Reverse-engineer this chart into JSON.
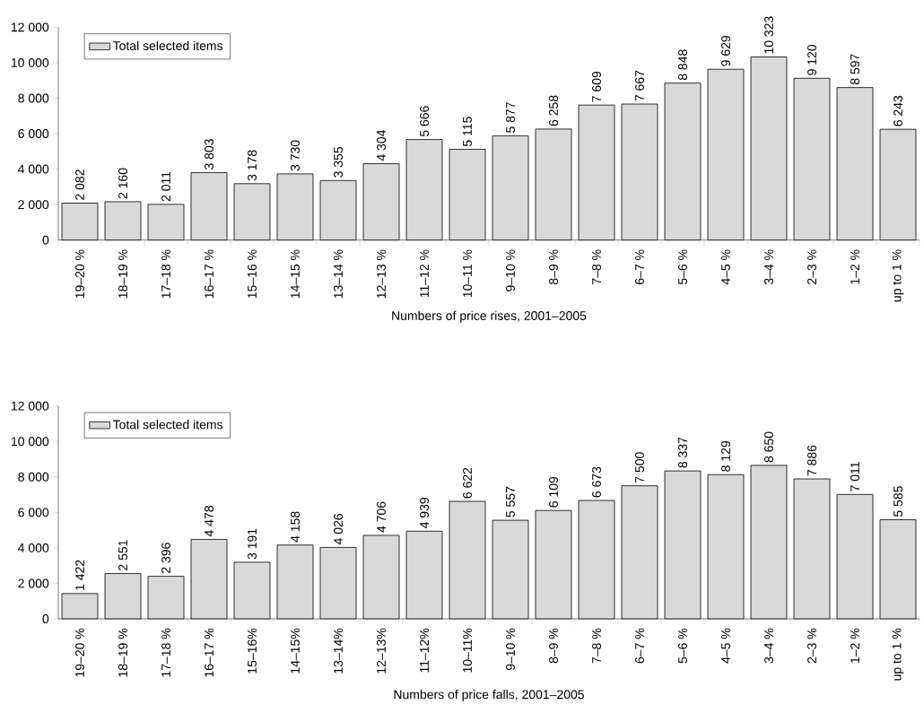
{
  "chart_data": [
    {
      "type": "bar",
      "xlabel": "Numbers of price rises, 2001–2005",
      "categories": [
        "19–20 %",
        "18–19 %",
        "17–18 %",
        "16–17 %",
        "15–16 %",
        "14–15 %",
        "13–14 %",
        "12–13 %",
        "11–12 %",
        "10–11 %",
        "9–10 %",
        "8–9 %",
        "7–8 %",
        "6–7 %",
        "5–6 %",
        "4–5 %",
        "3–4 %",
        "2–3 %",
        "1–2 %",
        "up to 1 %"
      ],
      "series": [
        {
          "name": "Total selected items",
          "color": "#d9d9d9",
          "values": [
            2082,
            2160,
            2011,
            3803,
            3178,
            3730,
            3355,
            4304,
            5666,
            5115,
            5877,
            6258,
            7609,
            7667,
            8848,
            9629,
            10323,
            9120,
            8597,
            6243
          ],
          "value_labels": [
            "2 082",
            "2 160",
            "2 011",
            "3 803",
            "3 178",
            "3 730",
            "3 355",
            "4 304",
            "5 666",
            "5 115",
            "5 877",
            "6 258",
            "7 609",
            "7 667",
            "8 848",
            "9 629",
            "10 323",
            "9 120",
            "8 597",
            "6 243"
          ]
        }
      ],
      "ylim": [
        0,
        12000
      ],
      "yticks": [
        0,
        {
          "value": 2000,
          "label": "2 000"
        },
        {
          "value": 4000,
          "label": "4 000"
        },
        {
          "value": 6000,
          "label": "6 000"
        },
        {
          "value": 8000,
          "label": "8 000"
        },
        {
          "value": 10000,
          "label": "10 000"
        },
        {
          "value": 12000,
          "label": "12 000"
        }
      ],
      "legend": "top left",
      "grid": false
    },
    {
      "type": "bar",
      "xlabel": "Numbers of price falls, 2001–2005",
      "categories": [
        "19–20 %",
        "18–19 %",
        "17–18 %",
        "16–17 %",
        "15–16%",
        "14–15%",
        "13–14%",
        "12–13%",
        "11–12%",
        "10–11%",
        "9–10 %",
        "8–9 %",
        "7–8 %",
        "6–7 %",
        "5–6 %",
        "4–5 %",
        "3–4 %",
        "2–3 %",
        "1–2 %",
        "up to 1 %"
      ],
      "series": [
        {
          "name": "Total selected items",
          "color": "#d9d9d9",
          "values": [
            1422,
            2551,
            2396,
            4478,
            3191,
            4158,
            4026,
            4706,
            4939,
            6622,
            5557,
            6109,
            6673,
            7500,
            8337,
            8129,
            8650,
            7886,
            7011,
            5585
          ],
          "value_labels": [
            "1 422",
            "2 551",
            "2 396",
            "4 478",
            "3 191",
            "4 158",
            "4 026",
            "4 706",
            "4 939",
            "6 622",
            "5 557",
            "6 109",
            "6 673",
            "7 500",
            "8 337",
            "8 129",
            "8 650",
            "7 886",
            "7 011",
            "5 585"
          ]
        }
      ],
      "ylim": [
        0,
        12000
      ],
      "yticks": [
        0,
        {
          "value": 2000,
          "label": "2 000"
        },
        {
          "value": 4000,
          "label": "4 000"
        },
        {
          "value": 6000,
          "label": "6 000"
        },
        {
          "value": 8000,
          "label": "8 000"
        },
        {
          "value": 10000,
          "label": "10 000"
        },
        {
          "value": 12000,
          "label": "12 000"
        }
      ],
      "legend": "top left",
      "grid": false
    }
  ]
}
